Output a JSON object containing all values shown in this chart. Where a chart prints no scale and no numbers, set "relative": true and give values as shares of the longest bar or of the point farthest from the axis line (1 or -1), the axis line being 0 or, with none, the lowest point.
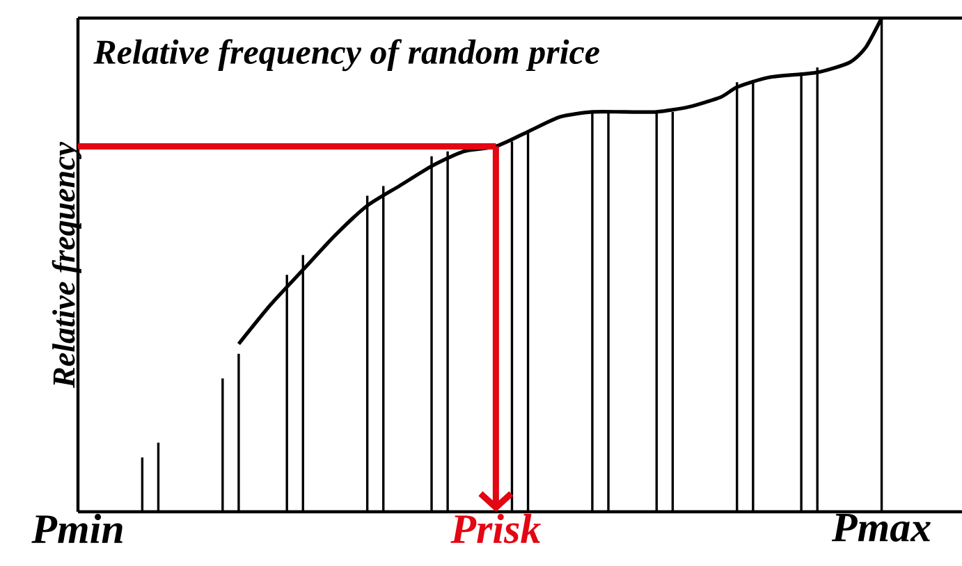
{
  "chart_data": {
    "type": "line",
    "title": "Relative frequency of random price",
    "ylabel": "Relative frequency",
    "relative": true,
    "categories": [
      "Pmin",
      null,
      null,
      null,
      null,
      null,
      null,
      null,
      null,
      null,
      null,
      null,
      null,
      null,
      null,
      null,
      null,
      null,
      null,
      null,
      null,
      null,
      null,
      null,
      null,
      null,
      "Prisk",
      null,
      null,
      null,
      null,
      null,
      null,
      null,
      null,
      null,
      null,
      null,
      null,
      null,
      null,
      null,
      null,
      null,
      null,
      null,
      null,
      null,
      null,
      null,
      "Pmax",
      null,
      null,
      null,
      null,
      null
    ],
    "series": [
      {
        "type": "bar",
        "color": "#000000",
        "values": [
          null,
          null,
          null,
          null,
          0.11,
          0.14,
          null,
          null,
          null,
          0.27,
          0.32,
          null,
          null,
          0.48,
          0.52,
          null,
          null,
          null,
          0.64,
          0.66,
          null,
          null,
          0.72,
          0.73,
          null,
          null,
          null,
          0.75,
          0.77,
          null,
          null,
          null,
          0.81,
          0.81,
          null,
          null,
          0.81,
          0.81,
          null,
          null,
          null,
          0.87,
          0.87,
          null,
          null,
          0.89,
          0.9,
          null,
          null,
          null,
          1,
          null,
          null,
          null,
          null,
          null
        ]
      },
      {
        "color": "#000000",
        "values": [
          null,
          null,
          null,
          null,
          null,
          null,
          null,
          null,
          null,
          null,
          0.34,
          null,
          0.42,
          null,
          0.49,
          null,
          0.56,
          null,
          0.62,
          null,
          0.66,
          null,
          0.7,
          null,
          0.73,
          null,
          0.74,
          null,
          0.77,
          null,
          0.8,
          null,
          0.81,
          null,
          0.81,
          null,
          0.81,
          null,
          0.82,
          null,
          0.84,
          0.86,
          null,
          0.88,
          null,
          null,
          0.89,
          null,
          0.91,
          0.94,
          1,
          null,
          null,
          null,
          null,
          null
        ]
      }
    ],
    "ref_lines": [
      {
        "axis": "y",
        "value": 0.74,
        "color": "#e30613"
      },
      {
        "axis": "x",
        "value": "Prisk",
        "color": "#e30613"
      }
    ],
    "grid": false,
    "marker": "none"
  }
}
